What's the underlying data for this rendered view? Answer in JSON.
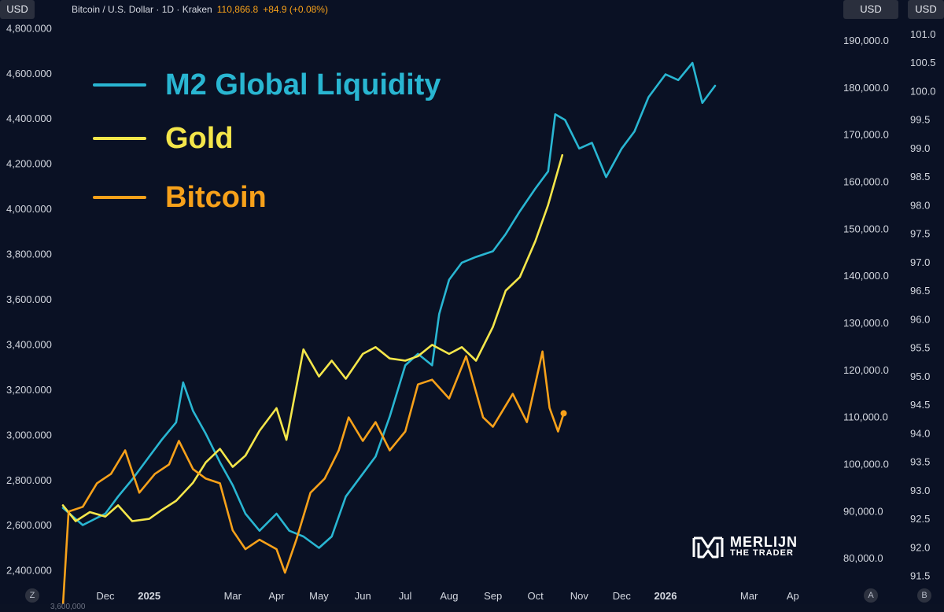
{
  "header": {
    "left_unit": "USD",
    "ticker_text": "Bitcoin / U.S. Dollar · 1D · Kraken",
    "price": "110,866.8",
    "change": "+84.9 (+0.08%)",
    "right_unit": "USD",
    "far_right_unit": "USD"
  },
  "footer": {
    "z_button": "Z",
    "a_button": "A",
    "b_button": "B",
    "cut_off_label": "3,600,000"
  },
  "branding": {
    "line1": "MERLIJN",
    "line2": "THE TRADER"
  },
  "colors": {
    "background": "#0a1124",
    "m2": "#29b6d2",
    "gold": "#f4e64a",
    "bitcoin": "#f7a11a"
  },
  "chart_data": {
    "type": "line",
    "x_axis": {
      "labels": [
        "Dec",
        "2025",
        "Mar",
        "Apr",
        "May",
        "Jun",
        "Jul",
        "Aug",
        "Sep",
        "Oct",
        "Nov",
        "Dec",
        "2026",
        "Mar",
        "Ap"
      ],
      "range": [
        "2024-11-01",
        "2026-04-30"
      ]
    },
    "axes": {
      "gold": {
        "side": "left",
        "range": [
          2350,
          4850
        ],
        "ticks": [
          "2,400.000",
          "2,600.000",
          "2,800.000",
          "3,000.000",
          "3,200.000",
          "3,400.000",
          "3,600.000",
          "3,800.000",
          "4,000.000",
          "4,200.000",
          "4,400.000",
          "4,600.000",
          "4,800.000"
        ]
      },
      "bitcoin": {
        "side": "right-inner",
        "range": [
          75000,
          195000
        ],
        "ticks": [
          "80,000.0",
          "90,000.0",
          "100,000.0",
          "110,000.0",
          "120,000.0",
          "130,000.0",
          "140,000.0",
          "150,000.0",
          "160,000.0",
          "170,000.0",
          "180,000.0",
          "190,000.0"
        ]
      },
      "m2": {
        "side": "right-outer",
        "range": [
          91.4,
          101.3
        ],
        "ticks": [
          "91.5",
          "92.0",
          "92.5",
          "93.0",
          "93.5",
          "94.0",
          "94.5",
          "95.0",
          "95.5",
          "96.0",
          "96.5",
          "97.0",
          "97.5",
          "98.0",
          "98.5",
          "99.0",
          "99.5",
          "100.0",
          "100.5",
          "101.0"
        ]
      }
    },
    "series": [
      {
        "name": "M2 Global Liquidity",
        "axis": "m2",
        "points": [
          [
            "2024-11-01",
            92.7
          ],
          [
            "2024-11-15",
            92.4
          ],
          [
            "2024-12-01",
            92.6
          ],
          [
            "2024-12-10",
            92.9
          ],
          [
            "2024-12-20",
            93.2
          ],
          [
            "2025-01-01",
            93.6
          ],
          [
            "2025-01-10",
            93.9
          ],
          [
            "2025-01-20",
            94.2
          ],
          [
            "2025-01-25",
            94.9
          ],
          [
            "2025-02-01",
            94.4
          ],
          [
            "2025-02-10",
            94.0
          ],
          [
            "2025-02-20",
            93.5
          ],
          [
            "2025-03-01",
            93.1
          ],
          [
            "2025-03-10",
            92.6
          ],
          [
            "2025-03-20",
            92.3
          ],
          [
            "2025-04-01",
            92.6
          ],
          [
            "2025-04-10",
            92.3
          ],
          [
            "2025-04-20",
            92.2
          ],
          [
            "2025-05-01",
            92.0
          ],
          [
            "2025-05-10",
            92.2
          ],
          [
            "2025-05-20",
            92.9
          ],
          [
            "2025-06-01",
            93.3
          ],
          [
            "2025-06-10",
            93.6
          ],
          [
            "2025-06-20",
            94.3
          ],
          [
            "2025-07-01",
            95.2
          ],
          [
            "2025-07-10",
            95.4
          ],
          [
            "2025-07-20",
            95.2
          ],
          [
            "2025-07-25",
            96.1
          ],
          [
            "2025-08-01",
            96.7
          ],
          [
            "2025-08-10",
            97.0
          ],
          [
            "2025-08-20",
            97.1
          ],
          [
            "2025-09-01",
            97.2
          ],
          [
            "2025-09-10",
            97.5
          ],
          [
            "2025-09-20",
            97.9
          ],
          [
            "2025-10-01",
            98.3
          ],
          [
            "2025-10-10",
            98.6
          ],
          [
            "2025-10-15",
            99.6
          ],
          [
            "2025-10-22",
            99.5
          ],
          [
            "2025-11-01",
            99.0
          ],
          [
            "2025-11-10",
            99.1
          ],
          [
            "2025-11-20",
            98.5
          ],
          [
            "2025-12-01",
            99.0
          ],
          [
            "2025-12-10",
            99.3
          ],
          [
            "2025-12-20",
            99.9
          ],
          [
            "2026-01-01",
            100.3
          ],
          [
            "2026-01-10",
            100.2
          ],
          [
            "2026-01-20",
            100.5
          ],
          [
            "2026-01-27",
            99.8
          ],
          [
            "2026-02-05",
            100.1
          ]
        ]
      },
      {
        "name": "Gold",
        "axis": "gold",
        "points": [
          [
            "2024-11-01",
            2690
          ],
          [
            "2024-11-10",
            2620
          ],
          [
            "2024-11-20",
            2660
          ],
          [
            "2024-12-01",
            2640
          ],
          [
            "2024-12-10",
            2690
          ],
          [
            "2024-12-20",
            2620
          ],
          [
            "2025-01-01",
            2630
          ],
          [
            "2025-01-10",
            2670
          ],
          [
            "2025-01-20",
            2710
          ],
          [
            "2025-02-01",
            2790
          ],
          [
            "2025-02-10",
            2880
          ],
          [
            "2025-02-20",
            2940
          ],
          [
            "2025-03-01",
            2860
          ],
          [
            "2025-03-10",
            2910
          ],
          [
            "2025-03-20",
            3020
          ],
          [
            "2025-04-01",
            3120
          ],
          [
            "2025-04-08",
            2980
          ],
          [
            "2025-04-20",
            3380
          ],
          [
            "2025-05-01",
            3260
          ],
          [
            "2025-05-10",
            3330
          ],
          [
            "2025-05-20",
            3250
          ],
          [
            "2025-06-01",
            3360
          ],
          [
            "2025-06-10",
            3390
          ],
          [
            "2025-06-20",
            3340
          ],
          [
            "2025-07-01",
            3330
          ],
          [
            "2025-07-10",
            3350
          ],
          [
            "2025-07-20",
            3400
          ],
          [
            "2025-08-01",
            3360
          ],
          [
            "2025-08-10",
            3390
          ],
          [
            "2025-08-20",
            3330
          ],
          [
            "2025-09-01",
            3480
          ],
          [
            "2025-09-10",
            3640
          ],
          [
            "2025-09-20",
            3700
          ],
          [
            "2025-10-01",
            3860
          ],
          [
            "2025-10-10",
            4020
          ],
          [
            "2025-10-20",
            4240
          ]
        ]
      },
      {
        "name": "Bitcoin",
        "axis": "bitcoin",
        "points": [
          [
            "2024-11-01",
            70000
          ],
          [
            "2024-11-05",
            90000
          ],
          [
            "2024-11-15",
            91000
          ],
          [
            "2024-11-25",
            96000
          ],
          [
            "2024-12-05",
            98000
          ],
          [
            "2024-12-15",
            103000
          ],
          [
            "2024-12-25",
            94000
          ],
          [
            "2025-01-05",
            98000
          ],
          [
            "2025-01-15",
            100000
          ],
          [
            "2025-01-22",
            105000
          ],
          [
            "2025-02-01",
            99000
          ],
          [
            "2025-02-10",
            97000
          ],
          [
            "2025-02-20",
            96000
          ],
          [
            "2025-03-01",
            86000
          ],
          [
            "2025-03-10",
            82000
          ],
          [
            "2025-03-20",
            84000
          ],
          [
            "2025-04-01",
            82000
          ],
          [
            "2025-04-07",
            77000
          ],
          [
            "2025-04-15",
            84000
          ],
          [
            "2025-04-25",
            94000
          ],
          [
            "2025-05-05",
            97000
          ],
          [
            "2025-05-15",
            103000
          ],
          [
            "2025-05-22",
            110000
          ],
          [
            "2025-06-01",
            105000
          ],
          [
            "2025-06-10",
            109000
          ],
          [
            "2025-06-20",
            103000
          ],
          [
            "2025-07-01",
            107000
          ],
          [
            "2025-07-10",
            117000
          ],
          [
            "2025-07-20",
            118000
          ],
          [
            "2025-08-01",
            114000
          ],
          [
            "2025-08-13",
            123000
          ],
          [
            "2025-08-25",
            110000
          ],
          [
            "2025-09-01",
            108000
          ],
          [
            "2025-09-15",
            115000
          ],
          [
            "2025-09-25",
            109000
          ],
          [
            "2025-10-06",
            124000
          ],
          [
            "2025-10-11",
            112000
          ],
          [
            "2025-10-17",
            107000
          ],
          [
            "2025-10-21",
            110866
          ]
        ]
      }
    ],
    "legend": {
      "position": "top-left"
    },
    "grid": false
  }
}
